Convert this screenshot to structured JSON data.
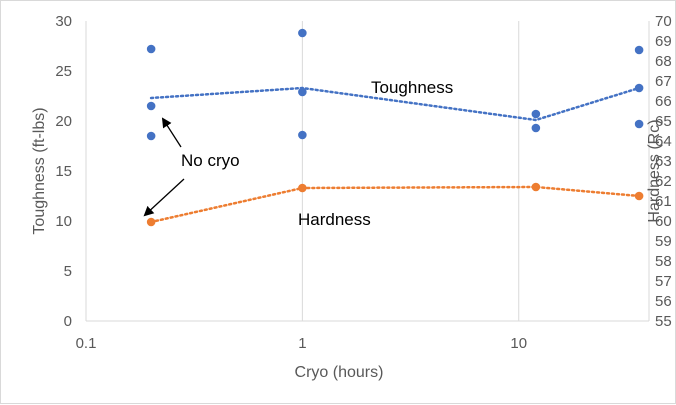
{
  "chart_data": {
    "type": "scatter",
    "xscale": "log",
    "xlim": [
      0.1,
      40
    ],
    "ylim": [
      0,
      30
    ],
    "y2lim": [
      55,
      70
    ],
    "xlabel": "Cryo (hours)",
    "ylabel": "Toughness (ft-lbs)",
    "y2label": "Hardness (Rc)",
    "x_ticks": [
      "0.1",
      "1",
      "10"
    ],
    "y_ticks": [
      "0",
      "5",
      "10",
      "15",
      "20",
      "25",
      "30"
    ],
    "y2_ticks": [
      "55",
      "56",
      "57",
      "58",
      "59",
      "60",
      "61",
      "62",
      "63",
      "64",
      "65",
      "66",
      "67",
      "68",
      "69",
      "70"
    ],
    "grid": "vertical",
    "series": [
      {
        "name": "Toughness",
        "axis": "left",
        "color": "#4472C4",
        "points": [
          {
            "x": 0.2,
            "y": 27.2
          },
          {
            "x": 0.2,
            "y": 21.5
          },
          {
            "x": 0.2,
            "y": 18.5
          },
          {
            "x": 1,
            "y": 28.8
          },
          {
            "x": 1,
            "y": 22.9
          },
          {
            "x": 1,
            "y": 18.6
          },
          {
            "x": 12,
            "y": 20.7
          },
          {
            "x": 12,
            "y": 19.3
          },
          {
            "x": 36,
            "y": 27.1
          },
          {
            "x": 36,
            "y": 23.3
          },
          {
            "x": 36,
            "y": 19.7
          }
        ],
        "trend": [
          {
            "x": 0.2,
            "y": 22.3
          },
          {
            "x": 1,
            "y": 23.3
          },
          {
            "x": 12,
            "y": 20.1
          },
          {
            "x": 36,
            "y": 23.3
          }
        ]
      },
      {
        "name": "Hardness",
        "axis": "right",
        "color": "#ED7D31",
        "points": [
          {
            "x": 0.2,
            "y": 59.95
          },
          {
            "x": 1,
            "y": 61.65
          },
          {
            "x": 12,
            "y": 61.7
          },
          {
            "x": 36,
            "y": 61.25
          }
        ],
        "trend": [
          {
            "x": 0.2,
            "y": 59.95
          },
          {
            "x": 1,
            "y": 61.65
          },
          {
            "x": 12,
            "y": 61.7
          },
          {
            "x": 36,
            "y": 61.25
          }
        ]
      }
    ],
    "annotations": [
      "No cryo"
    ]
  }
}
